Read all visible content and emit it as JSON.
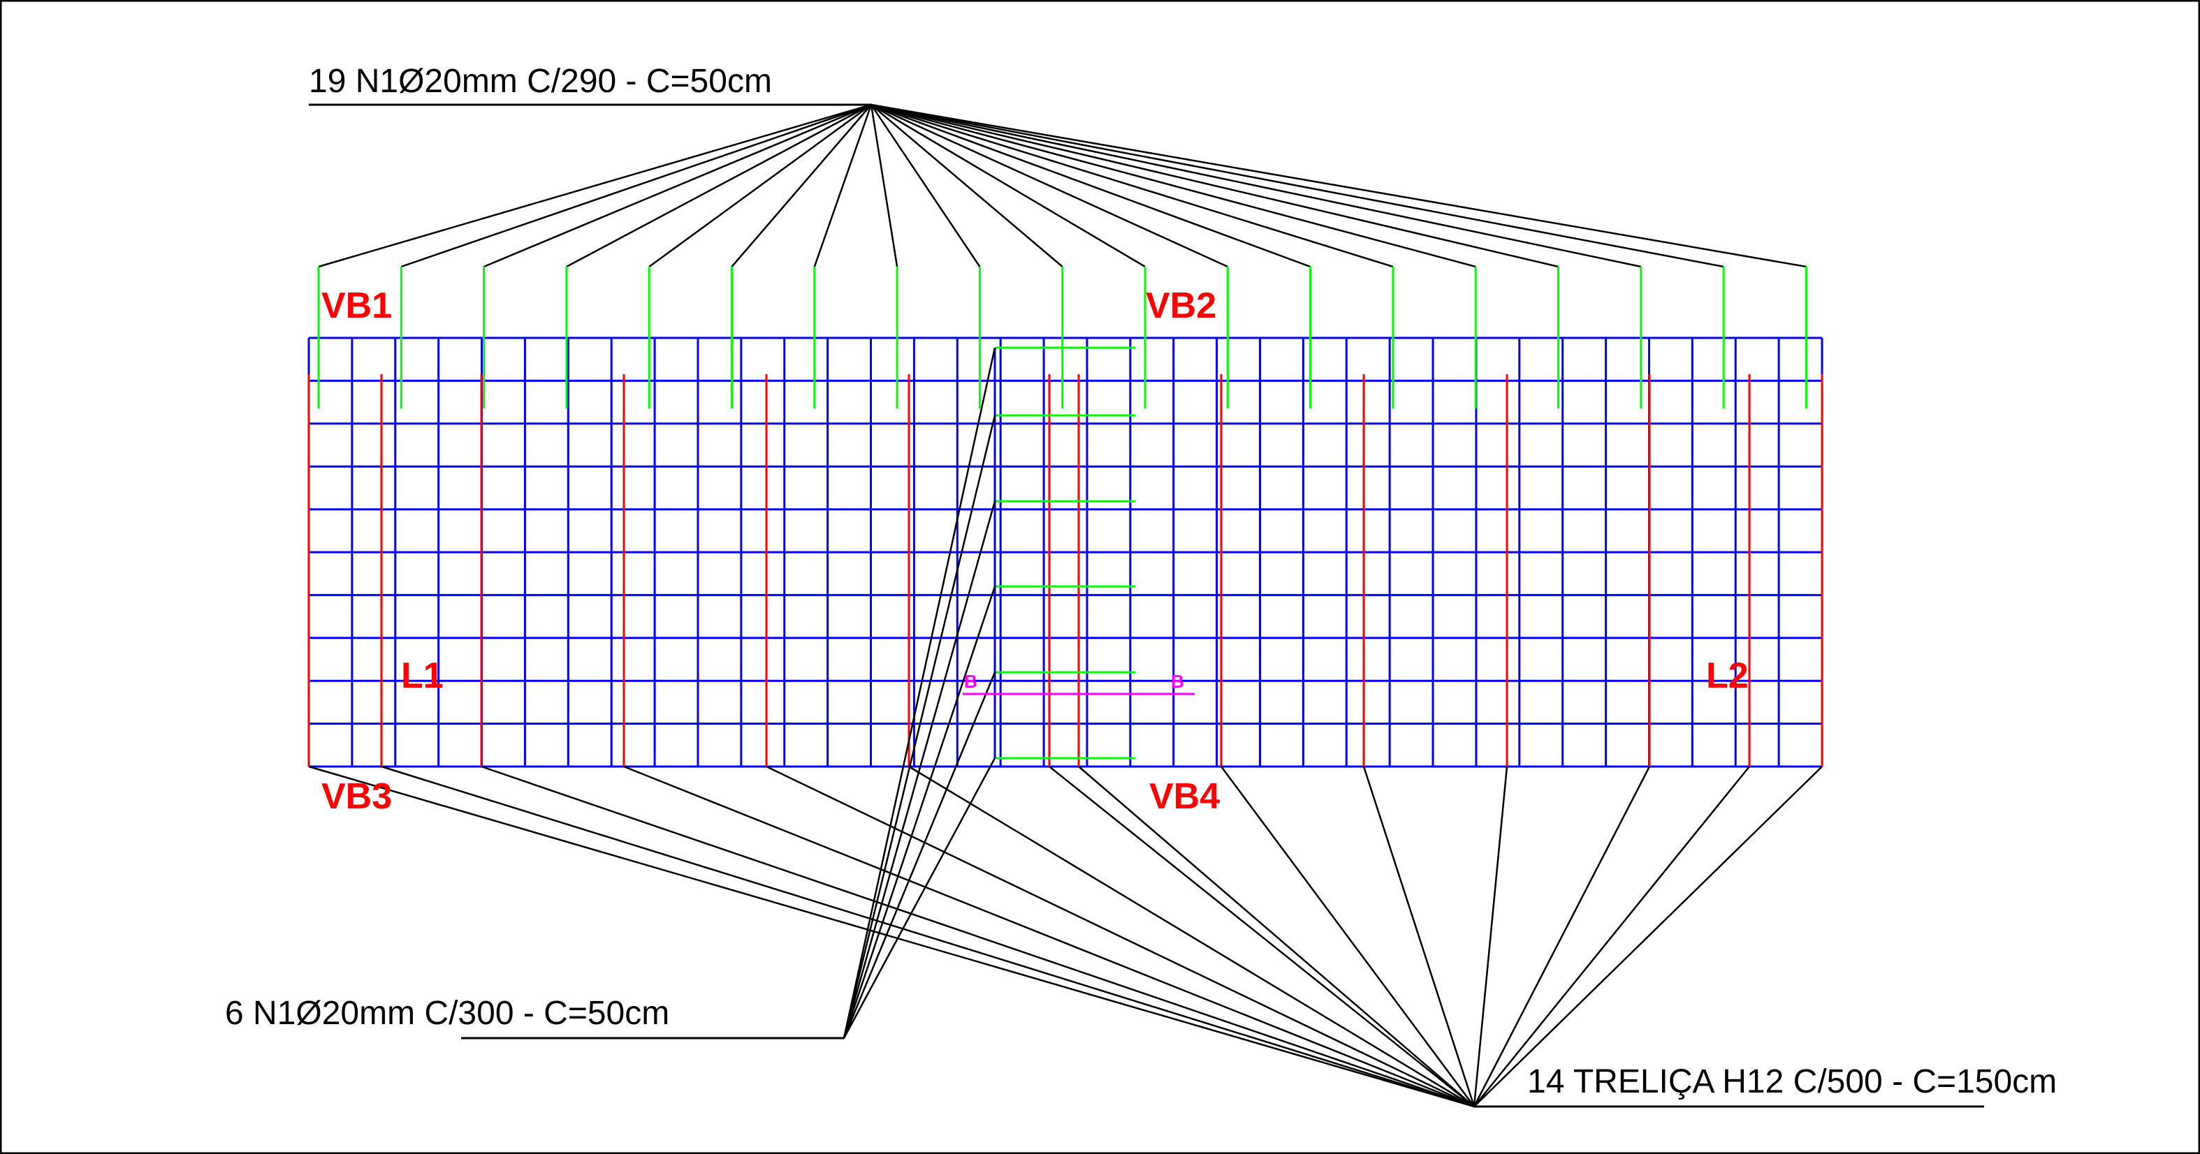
{
  "callouts": {
    "top": "19 N1Ø20mm C/290 - C=50cm",
    "middle": "6 N1Ø20mm C/300 - C=50cm",
    "bottom": "14 TRELIÇA H12 C/500 - C=150cm"
  },
  "labels": {
    "vb1": "VB1",
    "vb2": "VB2",
    "vb3": "VB3",
    "vb4": "VB4",
    "l1": "L1",
    "l2": "L2",
    "section_left": "B",
    "section_right": "B"
  },
  "colors": {
    "mesh": "#0000ff",
    "truss": "#ff0000",
    "bars": "#00ff00",
    "leader": "#000000",
    "label": "#ff0000",
    "section": "#ff00ff"
  }
}
